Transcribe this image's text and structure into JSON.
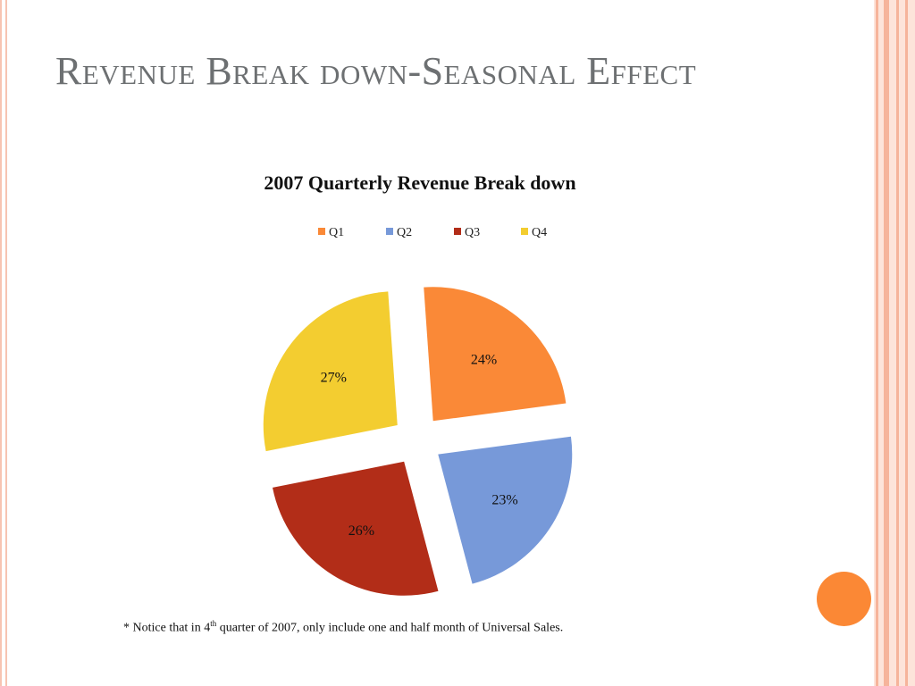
{
  "slide": {
    "title": "Revenue Break down-Seasonal Effect"
  },
  "theme": {
    "title_color": "#6d7072",
    "accent_orange": "#fb8835"
  },
  "chart_data": {
    "type": "pie",
    "title": "2007 Quarterly Revenue Break down",
    "legend_position": "top",
    "categories": [
      "Q1",
      "Q2",
      "Q3",
      "Q4"
    ],
    "values": [
      24,
      23,
      26,
      27
    ],
    "data_labels": [
      "24%",
      "23%",
      "26%",
      "27%"
    ],
    "colors": [
      "#fa8937",
      "#7799d9",
      "#b22d18",
      "#f3cd30"
    ],
    "exploded": true
  },
  "footnote": {
    "prefix": "* Notice that in 4",
    "superscript": "th",
    "suffix": " quarter of 2007, only include one and half month of Universal Sales."
  }
}
